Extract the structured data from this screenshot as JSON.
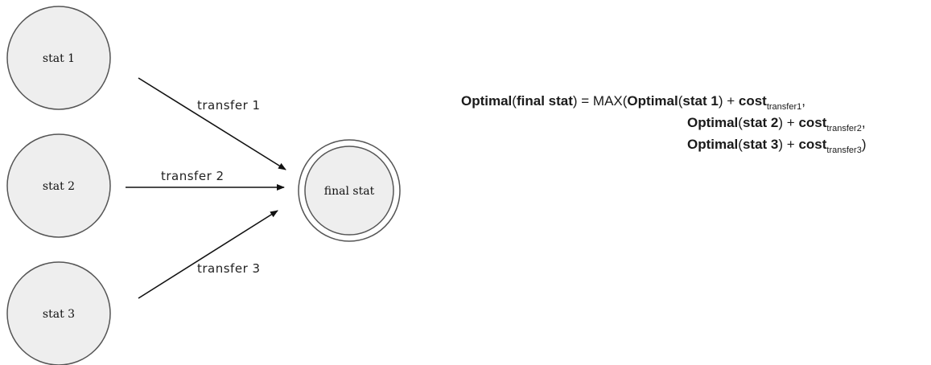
{
  "nodes": {
    "stat1": "stat 1",
    "stat2": "stat 2",
    "stat3": "stat 3",
    "final": "final stat"
  },
  "edges": {
    "t1": "transfer 1",
    "t2": "transfer 2",
    "t3": "transfer 3"
  },
  "formula": {
    "lhs_fn": "Optimal",
    "lhs_open": "(",
    "lhs_arg": "final stat",
    "lhs_close": ")",
    "equals": " = ",
    "max": "MAX(",
    "row1_fn": "Optimal",
    "row1_open": "(",
    "row1_arg": "stat 1",
    "row1_close": ")",
    "plus": " + ",
    "cost": "cost",
    "row1_sub": "transfer1",
    "row1_end": ",",
    "row2_fn": "Optimal",
    "row2_open": "(",
    "row2_arg": "stat 2",
    "row2_close": ")",
    "row2_sub": "transfer2",
    "row2_end": ",",
    "row3_fn": "Optimal",
    "row3_open": "(",
    "row3_arg": "stat 3",
    "row3_close": ")",
    "row3_sub": "transfer3",
    "row3_end": ")"
  }
}
